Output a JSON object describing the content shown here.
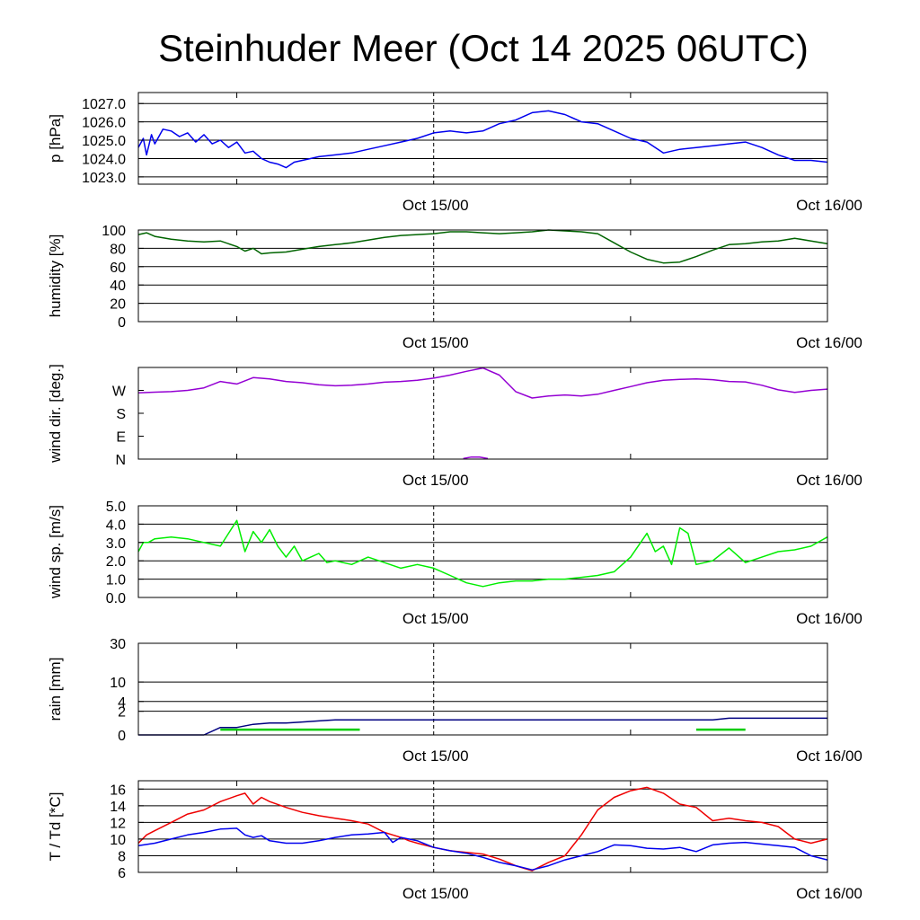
{
  "title": "Steinhuder Meer (Oct 14 2025 06UTC)",
  "chart_data": [
    {
      "name": "pressure",
      "type": "line",
      "ylabel": "p [hPa]",
      "ylim": [
        1022.6,
        1027.6
      ],
      "gridlines": [
        1023.0,
        1024.0,
        1025.0,
        1026.0,
        1027.0
      ],
      "yticks": [
        "1027.0",
        "1026.0",
        "1025.0",
        "1024.0",
        "1023.0"
      ],
      "ytick_values": [
        1027.0,
        1026.0,
        1025.0,
        1024.0,
        1023.0
      ],
      "xlim": [
        0,
        42
      ],
      "xticks": [
        {
          "x": 18,
          "label": "Oct 15/00"
        },
        {
          "x": 42,
          "label": "Oct 16/00"
        }
      ],
      "xminor": [
        6,
        30
      ],
      "series": [
        {
          "name": "pressure",
          "color": "#0000ee",
          "x": [
            0,
            0.3,
            0.5,
            0.8,
            1,
            1.5,
            2,
            2.5,
            3,
            3.5,
            4,
            4.5,
            5,
            5.5,
            6,
            6.5,
            7,
            7.5,
            8,
            8.5,
            9,
            9.5,
            10,
            11,
            12,
            13,
            14,
            15,
            16,
            17,
            18,
            19,
            20,
            21,
            22,
            23,
            24,
            25,
            26,
            27,
            28,
            29,
            30,
            31,
            32,
            33,
            34,
            35,
            36,
            37,
            38,
            39,
            40,
            41,
            42
          ],
          "y": [
            1024.6,
            1025.1,
            1024.2,
            1025.3,
            1024.8,
            1025.6,
            1025.5,
            1025.2,
            1025.4,
            1024.9,
            1025.3,
            1024.8,
            1025.0,
            1024.6,
            1024.9,
            1024.3,
            1024.4,
            1024.0,
            1023.8,
            1023.7,
            1023.5,
            1023.8,
            1023.9,
            1024.1,
            1024.2,
            1024.3,
            1024.5,
            1024.7,
            1024.9,
            1025.1,
            1025.4,
            1025.5,
            1025.4,
            1025.5,
            1025.9,
            1026.1,
            1026.5,
            1026.6,
            1026.4,
            1026.0,
            1025.9,
            1025.5,
            1025.1,
            1024.9,
            1024.3,
            1024.5,
            1024.6,
            1024.7,
            1024.8,
            1024.9,
            1024.6,
            1024.2,
            1023.9,
            1023.9,
            1023.8
          ]
        }
      ]
    },
    {
      "name": "humidity",
      "type": "line",
      "ylabel": "humidity [%]",
      "ylim": [
        0,
        100
      ],
      "gridlines": [
        0,
        20,
        40,
        60,
        80,
        100
      ],
      "yticks": [
        "100",
        "80",
        "60",
        "40",
        "20",
        "0"
      ],
      "ytick_values": [
        100,
        80,
        60,
        40,
        20,
        0
      ],
      "xlim": [
        0,
        42
      ],
      "xticks": [
        {
          "x": 18,
          "label": "Oct 15/00"
        },
        {
          "x": 42,
          "label": "Oct 16/00"
        }
      ],
      "xminor": [
        6,
        30
      ],
      "series": [
        {
          "name": "humidity",
          "color": "#006400",
          "x": [
            0,
            0.5,
            1,
            2,
            3,
            4,
            5,
            6,
            6.5,
            7,
            7.5,
            8,
            9,
            10,
            11,
            12,
            13,
            14,
            15,
            16,
            17,
            18,
            19,
            20,
            21,
            22,
            23,
            24,
            25,
            26,
            27,
            28,
            29,
            30,
            31,
            32,
            33,
            34,
            35,
            36,
            37,
            38,
            39,
            40,
            41,
            42
          ],
          "y": [
            95,
            97,
            93,
            90,
            88,
            87,
            88,
            82,
            77,
            80,
            74,
            75,
            76,
            79,
            82,
            84,
            86,
            89,
            92,
            94,
            95,
            96,
            98,
            98,
            97,
            96,
            97,
            98,
            100,
            99,
            98,
            96,
            86,
            76,
            68,
            64,
            65,
            71,
            78,
            84,
            85,
            87,
            88,
            91,
            88,
            85
          ]
        }
      ]
    },
    {
      "name": "wind_direction",
      "type": "line",
      "ylabel": "wind dir. [deg.]",
      "ylim": [
        0,
        360
      ],
      "gridlines": [],
      "yticks": [
        "W",
        "S",
        "E",
        "N"
      ],
      "ytick_values": [
        270,
        180,
        90,
        0
      ],
      "xlim": [
        0,
        42
      ],
      "xticks": [
        {
          "x": 18,
          "label": "Oct 15/00"
        },
        {
          "x": 42,
          "label": "Oct 16/00"
        }
      ],
      "xminor": [
        6,
        30
      ],
      "series": [
        {
          "name": "wind direction",
          "color": "#9400d3",
          "x": [
            0,
            1,
            2,
            3,
            4,
            5,
            6,
            7,
            8,
            9,
            10,
            11,
            12,
            13,
            14,
            15,
            16,
            17,
            18,
            19,
            20,
            21,
            22,
            23,
            24,
            25,
            26,
            27,
            28,
            29,
            30,
            31,
            32,
            33,
            34,
            35,
            36,
            37,
            38,
            39,
            40,
            41,
            42
          ],
          "y": [
            260,
            263,
            265,
            270,
            280,
            305,
            295,
            320,
            315,
            305,
            300,
            292,
            288,
            290,
            295,
            302,
            305,
            310,
            318,
            330,
            345,
            358,
            330,
            265,
            240,
            248,
            252,
            248,
            255,
            270,
            285,
            300,
            310,
            313,
            315,
            312,
            305,
            303,
            290,
            272,
            262,
            270,
            275
          ]
        },
        {
          "name": "wind direction (wrapped)",
          "color": "#9400d3",
          "x": [
            19.8,
            20.3,
            20.8,
            21.3
          ],
          "y": [
            2,
            8,
            8,
            2
          ]
        }
      ]
    },
    {
      "name": "wind_speed",
      "type": "line",
      "ylabel": "wind sp. [m/s]",
      "ylim": [
        0,
        5
      ],
      "gridlines": [
        0,
        1,
        2,
        3,
        4,
        5
      ],
      "yticks": [
        "5.0",
        "4.0",
        "3.0",
        "2.0",
        "1.0",
        "0.0"
      ],
      "ytick_values": [
        5,
        4,
        3,
        2,
        1,
        0
      ],
      "xlim": [
        0,
        42
      ],
      "xticks": [
        {
          "x": 18,
          "label": "Oct 15/00"
        },
        {
          "x": 42,
          "label": "Oct 16/00"
        }
      ],
      "xminor": [
        6,
        30
      ],
      "series": [
        {
          "name": "wind speed",
          "color": "#00ee00",
          "x": [
            0,
            0.3,
            0.6,
            1,
            2,
            3,
            4,
            5,
            5.5,
            6,
            6.5,
            7,
            7.5,
            8,
            8.5,
            9,
            9.5,
            10,
            10.5,
            11,
            11.5,
            12,
            13,
            14,
            15,
            16,
            17,
            18,
            19,
            20,
            21,
            22,
            23,
            24,
            25,
            26,
            27,
            28,
            29,
            30,
            31,
            31.5,
            32,
            32.5,
            33,
            33.5,
            34,
            35,
            36,
            37,
            38,
            39,
            40,
            41,
            42
          ],
          "y": [
            2.5,
            3.0,
            3.0,
            3.2,
            3.3,
            3.2,
            3.0,
            2.8,
            3.5,
            4.2,
            2.5,
            3.6,
            3.0,
            3.7,
            2.8,
            2.2,
            2.8,
            2.0,
            2.2,
            2.4,
            1.9,
            2.0,
            1.8,
            2.2,
            1.9,
            1.6,
            1.8,
            1.6,
            1.2,
            0.8,
            0.6,
            0.8,
            0.9,
            0.9,
            1.0,
            1.0,
            1.1,
            1.2,
            1.4,
            2.2,
            3.5,
            2.5,
            2.8,
            1.8,
            3.8,
            3.5,
            1.8,
            2.0,
            2.7,
            1.9,
            2.2,
            2.5,
            2.6,
            2.8,
            3.3
          ]
        }
      ]
    },
    {
      "name": "rain",
      "type": "line",
      "ylabel": "rain [mm]",
      "ylim": [
        0,
        30
      ],
      "gridlines": [
        0,
        2,
        4,
        10,
        30
      ],
      "yticks": [
        "30",
        "10",
        "4",
        "2",
        "0"
      ],
      "ytick_values": [
        30,
        10,
        4,
        2,
        0
      ],
      "xlim": [
        0,
        42
      ],
      "xticks": [
        {
          "x": 18,
          "label": "Oct 15/00"
        },
        {
          "x": 42,
          "label": "Oct 16/00"
        }
      ],
      "xminor": [
        6,
        30
      ],
      "series": [
        {
          "name": "accumulated rain",
          "color": "#000080",
          "x": [
            0,
            4,
            5,
            6,
            7,
            8,
            9,
            10,
            11,
            12,
            13,
            18,
            30,
            35,
            36,
            42
          ],
          "y": [
            0,
            0,
            0.2,
            0.2,
            0.4,
            0.5,
            0.5,
            0.6,
            0.7,
            0.8,
            0.8,
            0.8,
            0.8,
            0.8,
            1.0,
            1.0
          ]
        },
        {
          "name": "hourly rain",
          "color": "#00cc00",
          "x": [
            5,
            13.5,
            null,
            34,
            37
          ],
          "y": [
            0.1,
            0.1,
            null,
            0.1,
            0.1
          ]
        }
      ]
    },
    {
      "name": "temperature",
      "type": "line",
      "ylabel": "T / Td [*C]",
      "ylim": [
        6,
        17
      ],
      "gridlines": [
        6,
        8,
        10,
        12,
        14,
        16
      ],
      "yticks": [
        "16",
        "14",
        "12",
        "10",
        "8",
        "6"
      ],
      "ytick_values": [
        16,
        14,
        12,
        10,
        8,
        6
      ],
      "xlim": [
        0,
        42
      ],
      "xticks": [
        {
          "x": 18,
          "label": "Oct 15/00"
        },
        {
          "x": 42,
          "label": "Oct 16/00"
        }
      ],
      "xminor": [
        6,
        30
      ],
      "series": [
        {
          "name": "T",
          "color": "#ee0000",
          "x": [
            0,
            0.5,
            1,
            2,
            3,
            4,
            5,
            6,
            6.5,
            7,
            7.5,
            8,
            9,
            10,
            11,
            12,
            13,
            14,
            15,
            15.5,
            16,
            16.5,
            17,
            18,
            19,
            20,
            21,
            22,
            23,
            24,
            25,
            26,
            27,
            28,
            29,
            30,
            31,
            32,
            33,
            34,
            35,
            36,
            37,
            38,
            39,
            40,
            41,
            42
          ],
          "y": [
            9.5,
            10.5,
            11.0,
            12.0,
            13.0,
            13.5,
            14.5,
            15.2,
            15.5,
            14.2,
            15.0,
            14.5,
            13.8,
            13.2,
            12.8,
            12.5,
            12.2,
            11.8,
            10.8,
            10.5,
            10.2,
            9.8,
            9.5,
            9.0,
            8.6,
            8.4,
            8.2,
            7.6,
            6.8,
            6.2,
            7.2,
            8.0,
            10.5,
            13.5,
            15.0,
            15.8,
            16.2,
            15.5,
            14.2,
            13.8,
            12.2,
            12.5,
            12.2,
            12.0,
            11.5,
            10.0,
            9.5,
            10.0
          ]
        },
        {
          "name": "Td",
          "color": "#0000ee",
          "x": [
            0,
            1,
            2,
            3,
            4,
            5,
            6,
            6.5,
            7,
            7.5,
            8,
            9,
            10,
            11,
            12,
            13,
            14,
            15,
            15.5,
            16,
            17,
            18,
            19,
            20,
            21,
            22,
            23,
            24,
            25,
            26,
            27,
            28,
            29,
            30,
            31,
            32,
            33,
            34,
            35,
            36,
            37,
            38,
            39,
            40,
            41,
            42
          ],
          "y": [
            9.2,
            9.5,
            10.0,
            10.5,
            10.8,
            11.2,
            11.3,
            10.5,
            10.2,
            10.4,
            9.8,
            9.5,
            9.5,
            9.8,
            10.2,
            10.5,
            10.6,
            10.8,
            9.6,
            10.2,
            9.8,
            9.0,
            8.6,
            8.3,
            7.8,
            7.2,
            6.8,
            6.3,
            6.8,
            7.5,
            8.0,
            8.5,
            9.3,
            9.2,
            8.9,
            8.8,
            9.0,
            8.5,
            9.3,
            9.5,
            9.6,
            9.4,
            9.2,
            9.0,
            8.0,
            7.5
          ]
        }
      ]
    }
  ]
}
